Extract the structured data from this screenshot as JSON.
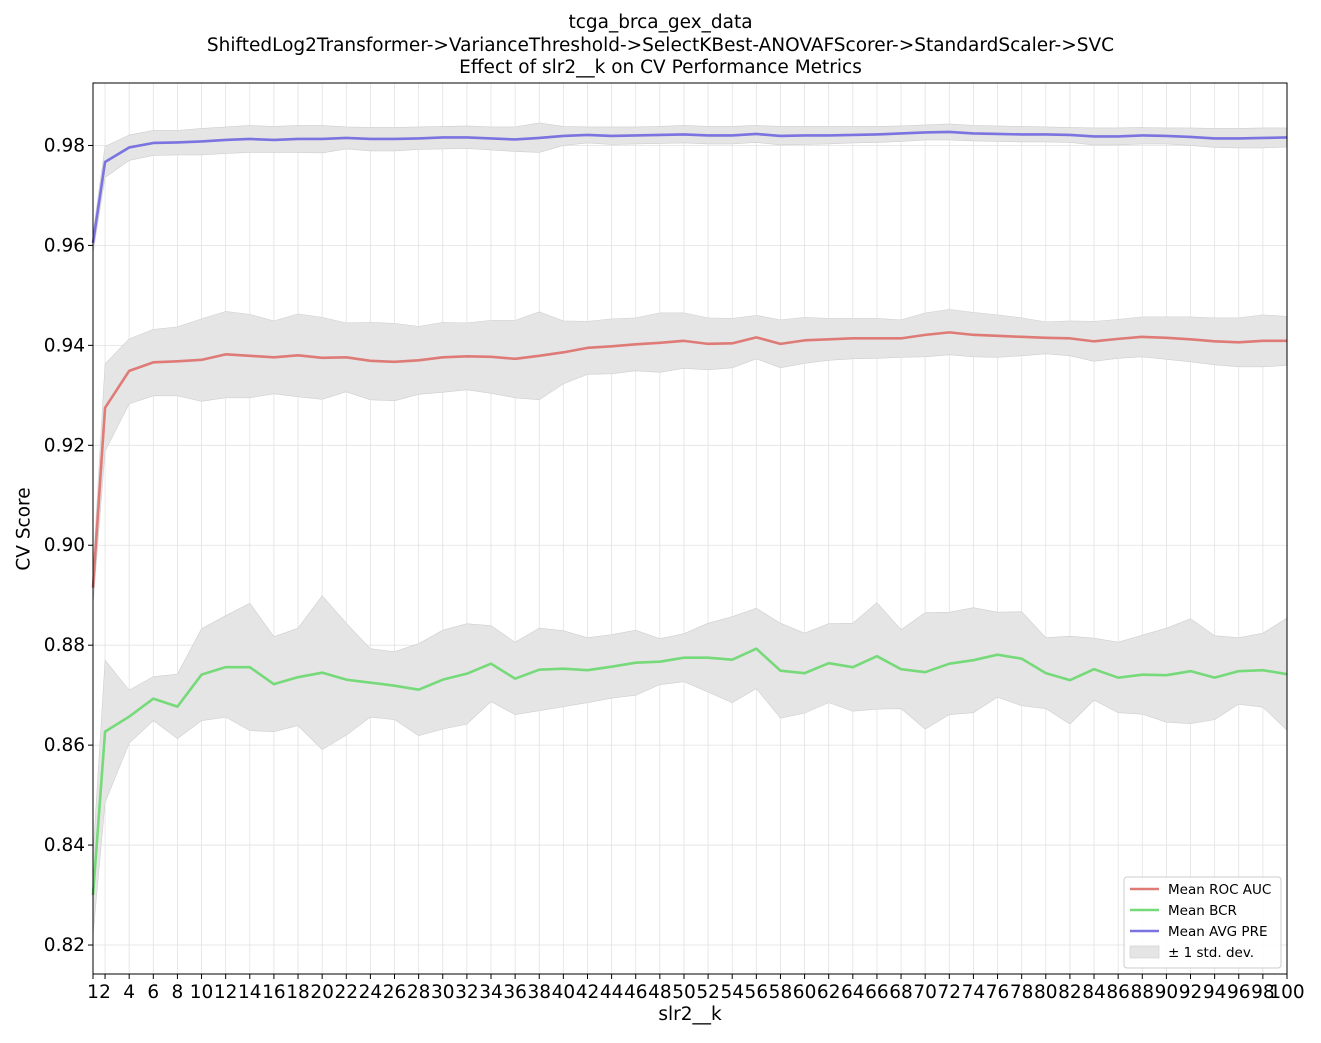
{
  "chart_data": {
    "type": "line",
    "title_lines": [
      "tcga_brca_gex_data",
      "ShiftedLog2Transformer->VarianceThreshold->SelectKBest-ANOVAFScorer->StandardScaler->SVC",
      "Effect of slr2__k on CV Performance Metrics"
    ],
    "xlabel": "slr2__k",
    "ylabel": "CV Score",
    "x": [
      1,
      2,
      4,
      6,
      8,
      10,
      12,
      14,
      16,
      18,
      20,
      22,
      24,
      26,
      28,
      30,
      32,
      34,
      36,
      38,
      40,
      42,
      44,
      46,
      48,
      50,
      52,
      54,
      56,
      58,
      60,
      62,
      64,
      66,
      68,
      70,
      72,
      74,
      76,
      78,
      80,
      82,
      84,
      86,
      88,
      90,
      92,
      94,
      96,
      98,
      100
    ],
    "x_tick_labels": [
      "1",
      "2",
      "4",
      "6",
      "8",
      "10",
      "12",
      "14",
      "16",
      "18",
      "20",
      "22",
      "24",
      "26",
      "28",
      "30",
      "32",
      "34",
      "36",
      "38",
      "40",
      "42",
      "44",
      "46",
      "48",
      "50",
      "52",
      "54",
      "56",
      "58",
      "60",
      "62",
      "64",
      "66",
      "68",
      "70",
      "72",
      "74",
      "76",
      "78",
      "80",
      "82",
      "84",
      "86",
      "88",
      "90",
      "92",
      "94",
      "96",
      "98",
      "100"
    ],
    "xlim": [
      1,
      100
    ],
    "ylim": [
      0.8142,
      0.9925
    ],
    "y_ticks": [
      0.82,
      0.84,
      0.86,
      0.88,
      0.9,
      0.92,
      0.94,
      0.96,
      0.98
    ],
    "y_tick_labels": [
      "0.82",
      "0.84",
      "0.86",
      "0.88",
      "0.90",
      "0.92",
      "0.94",
      "0.96",
      "0.98"
    ],
    "grid": true,
    "legend_position": "bottom-right",
    "band_label": "± 1 std. dev.",
    "band_color": "#e5e5e5",
    "series": [
      {
        "name": "Mean ROC AUC",
        "color": "#de7b77",
        "values": [
          0.8915,
          0.9275,
          0.9349,
          0.9366,
          0.9368,
          0.9371,
          0.9382,
          0.9379,
          0.9376,
          0.938,
          0.9375,
          0.9376,
          0.9369,
          0.9367,
          0.937,
          0.9376,
          0.9378,
          0.9377,
          0.9373,
          0.9379,
          0.9386,
          0.9395,
          0.9398,
          0.9402,
          0.9405,
          0.9409,
          0.9403,
          0.9404,
          0.9416,
          0.9403,
          0.941,
          0.9412,
          0.9414,
          0.9414,
          0.9414,
          0.9421,
          0.9426,
          0.9421,
          0.9419,
          0.9417,
          0.9415,
          0.9414,
          0.9408,
          0.9413,
          0.9417,
          0.9415,
          0.9412,
          0.9408,
          0.9406,
          0.9409,
          0.9409
        ],
        "upper": [
          0.895,
          0.9363,
          0.9413,
          0.9432,
          0.9437,
          0.9453,
          0.9468,
          0.9462,
          0.9449,
          0.9463,
          0.9456,
          0.9445,
          0.9446,
          0.9444,
          0.9438,
          0.9446,
          0.9445,
          0.945,
          0.945,
          0.9467,
          0.9449,
          0.9448,
          0.9453,
          0.9455,
          0.9465,
          0.9465,
          0.9455,
          0.9454,
          0.946,
          0.9451,
          0.9456,
          0.9454,
          0.9454,
          0.9454,
          0.9451,
          0.9465,
          0.9472,
          0.9466,
          0.9461,
          0.9455,
          0.9447,
          0.9449,
          0.9448,
          0.9452,
          0.9457,
          0.9457,
          0.9457,
          0.9455,
          0.9455,
          0.9461,
          0.9458
        ],
        "lower": [
          0.888,
          0.9188,
          0.9283,
          0.9299,
          0.9299,
          0.9288,
          0.9295,
          0.9295,
          0.9303,
          0.9297,
          0.9292,
          0.9307,
          0.9291,
          0.9289,
          0.9302,
          0.9306,
          0.9311,
          0.9304,
          0.9295,
          0.9291,
          0.9323,
          0.9342,
          0.9343,
          0.9349,
          0.9346,
          0.9354,
          0.9351,
          0.9355,
          0.9373,
          0.9355,
          0.9364,
          0.937,
          0.9373,
          0.9374,
          0.9376,
          0.9377,
          0.9381,
          0.9377,
          0.9376,
          0.9379,
          0.9383,
          0.9379,
          0.9368,
          0.9374,
          0.9377,
          0.9372,
          0.9367,
          0.9361,
          0.9357,
          0.9357,
          0.936
        ]
      },
      {
        "name": "Mean BCR",
        "color": "#76d97a",
        "values": [
          0.83,
          0.8627,
          0.8657,
          0.8693,
          0.8677,
          0.8741,
          0.8756,
          0.8756,
          0.8722,
          0.8736,
          0.8745,
          0.8731,
          0.8725,
          0.8719,
          0.8711,
          0.8731,
          0.8743,
          0.8763,
          0.8733,
          0.8751,
          0.8753,
          0.875,
          0.8757,
          0.8765,
          0.8767,
          0.8775,
          0.8775,
          0.8771,
          0.8793,
          0.8749,
          0.8744,
          0.8764,
          0.8756,
          0.8778,
          0.8752,
          0.8746,
          0.8763,
          0.877,
          0.8781,
          0.8773,
          0.8744,
          0.873,
          0.8752,
          0.8735,
          0.8741,
          0.874,
          0.8748,
          0.8735,
          0.8748,
          0.875,
          0.8742
        ],
        "upper": [
          0.838,
          0.877,
          0.871,
          0.8737,
          0.8742,
          0.8833,
          0.8859,
          0.8884,
          0.8817,
          0.8834,
          0.8899,
          0.8844,
          0.8793,
          0.8787,
          0.8803,
          0.883,
          0.8843,
          0.8839,
          0.8806,
          0.8834,
          0.8829,
          0.8815,
          0.8821,
          0.883,
          0.8813,
          0.8823,
          0.8844,
          0.8857,
          0.8874,
          0.8844,
          0.8824,
          0.8843,
          0.8844,
          0.8885,
          0.8831,
          0.8865,
          0.8866,
          0.8875,
          0.8866,
          0.8867,
          0.8815,
          0.8818,
          0.8814,
          0.8806,
          0.882,
          0.8834,
          0.8853,
          0.8819,
          0.8815,
          0.8824,
          0.8854
        ],
        "lower": [
          0.822,
          0.8485,
          0.8604,
          0.8649,
          0.8613,
          0.8649,
          0.8656,
          0.8629,
          0.8627,
          0.8639,
          0.8591,
          0.862,
          0.8656,
          0.8651,
          0.8619,
          0.8632,
          0.8642,
          0.8687,
          0.8661,
          0.8669,
          0.8677,
          0.8685,
          0.8694,
          0.87,
          0.8721,
          0.8727,
          0.8706,
          0.8685,
          0.8713,
          0.8654,
          0.8664,
          0.8685,
          0.8668,
          0.8672,
          0.8673,
          0.8632,
          0.8661,
          0.8665,
          0.8696,
          0.8679,
          0.8673,
          0.8642,
          0.869,
          0.8665,
          0.8662,
          0.8646,
          0.8643,
          0.8651,
          0.8682,
          0.8676,
          0.863
        ]
      },
      {
        "name": "Mean AVG PRE",
        "color": "#7b73df",
        "values": [
          0.9605,
          0.9767,
          0.9796,
          0.9805,
          0.9806,
          0.9808,
          0.9811,
          0.9813,
          0.9811,
          0.9813,
          0.9813,
          0.9815,
          0.9813,
          0.9813,
          0.9814,
          0.9816,
          0.9816,
          0.9814,
          0.9812,
          0.9815,
          0.9819,
          0.9821,
          0.9819,
          0.982,
          0.9821,
          0.9822,
          0.982,
          0.982,
          0.9823,
          0.9819,
          0.982,
          0.982,
          0.9821,
          0.9822,
          0.9824,
          0.9826,
          0.9827,
          0.9824,
          0.9823,
          0.9822,
          0.9822,
          0.9821,
          0.9818,
          0.9818,
          0.982,
          0.9819,
          0.9817,
          0.9814,
          0.9814,
          0.9815,
          0.9816
        ],
        "upper": [
          0.9625,
          0.9798,
          0.9821,
          0.983,
          0.983,
          0.9834,
          0.9837,
          0.984,
          0.9838,
          0.984,
          0.984,
          0.9837,
          0.9836,
          0.9836,
          0.9837,
          0.9838,
          0.9839,
          0.9837,
          0.9837,
          0.9845,
          0.9838,
          0.9837,
          0.9837,
          0.9837,
          0.9838,
          0.984,
          0.9838,
          0.9838,
          0.984,
          0.9838,
          0.9838,
          0.9838,
          0.9838,
          0.9838,
          0.9839,
          0.9841,
          0.9843,
          0.984,
          0.9839,
          0.9838,
          0.9837,
          0.9836,
          0.9835,
          0.9835,
          0.9836,
          0.9835,
          0.9835,
          0.9834,
          0.9834,
          0.9835,
          0.9835
        ],
        "lower": [
          0.9585,
          0.9736,
          0.977,
          0.978,
          0.9781,
          0.9781,
          0.9784,
          0.9786,
          0.9786,
          0.9786,
          0.9785,
          0.9793,
          0.9789,
          0.9789,
          0.9792,
          0.9793,
          0.9794,
          0.9791,
          0.9788,
          0.9786,
          0.98,
          0.9805,
          0.9802,
          0.9803,
          0.9804,
          0.9805,
          0.9803,
          0.9803,
          0.9806,
          0.9801,
          0.9802,
          0.9803,
          0.9805,
          0.9806,
          0.9808,
          0.9811,
          0.9811,
          0.9809,
          0.9808,
          0.9807,
          0.9807,
          0.9806,
          0.9801,
          0.9801,
          0.9803,
          0.9803,
          0.98,
          0.9796,
          0.9795,
          0.9795,
          0.9797
        ]
      }
    ]
  }
}
